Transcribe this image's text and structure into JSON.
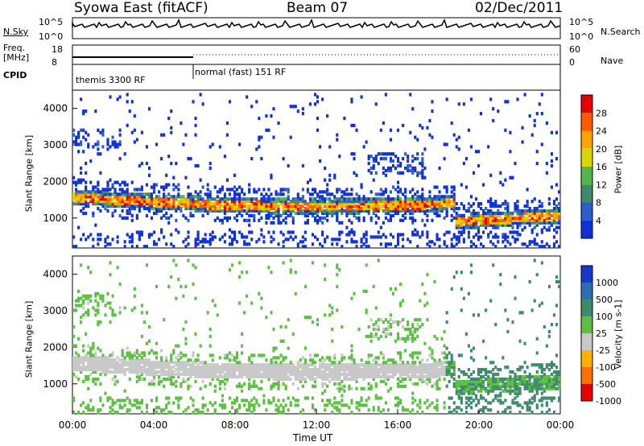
{
  "header": {
    "station": "Syowa East (fitACF)",
    "beam": "Beam 07",
    "date": "02/Dec/2011"
  },
  "panels": {
    "nsky_label": "N.Sky",
    "nsky_ticks": [
      "10^5",
      "10^0"
    ],
    "nsearch_label": "N.Search",
    "nsearch_ticks": [
      "10^5",
      "10^0"
    ],
    "freq_label_1": "Freq.",
    "freq_label_2": "[MHz]",
    "freq_ticks": [
      "18",
      "8"
    ],
    "nave_label": "Nave",
    "nave_ticks": [
      "60",
      "0"
    ],
    "cpid_label": "CPID",
    "cpid_segments": [
      {
        "label": "themis 3300 RF"
      },
      {
        "label": "normal (fast) 151 RF"
      }
    ]
  },
  "chart_data": [
    {
      "type": "heatmap",
      "quantity": "Power",
      "ylabel": "Slant Range [km]",
      "yticks": [
        1000,
        2000,
        3000,
        4000
      ],
      "ylim": [
        180,
        4500
      ],
      "colorbar_label": "Power [dB]",
      "colorbar_ticks": [
        "4",
        "8",
        "12",
        "16",
        "20",
        "24",
        "28"
      ],
      "colors": [
        "#1030d8",
        "#2a5fc8",
        "#3f8a6c",
        "#52b848",
        "#d8d800",
        "#ffa500",
        "#ff5a00",
        "#e80000"
      ]
    },
    {
      "type": "heatmap",
      "quantity": "Velocity",
      "ylabel": "Slant Range [km]",
      "yticks": [
        1000,
        2000,
        3000,
        4000
      ],
      "ylim": [
        180,
        4500
      ],
      "colorbar_label": "Velocity [m s-1]",
      "colorbar_ticks": [
        "1000",
        "500",
        "100",
        "25",
        "-25",
        "-100",
        "-500",
        "-1000"
      ],
      "colors": [
        "#1838c8",
        "#2a6fb0",
        "#3f8a6c",
        "#5ac040",
        "#c8c8c8",
        "#ffb000",
        "#ff7000",
        "#e80000"
      ]
    }
  ],
  "x_axis": {
    "label": "Time UT",
    "ticks": [
      "00:00",
      "04:00",
      "08:00",
      "12:00",
      "16:00",
      "20:00",
      "00:00"
    ]
  }
}
